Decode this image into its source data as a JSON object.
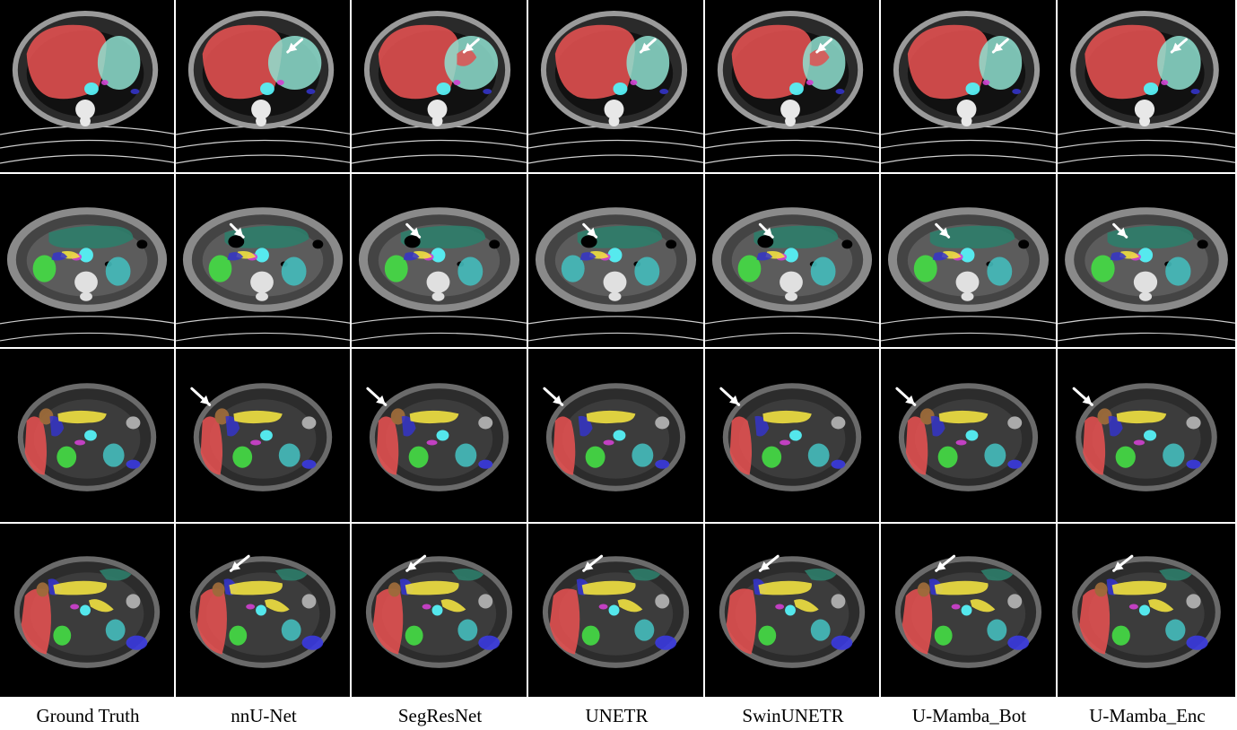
{
  "figure": {
    "columns": [
      "Ground Truth",
      "nnU-Net",
      "SegResNet",
      "UNETR",
      "SwinUNETR",
      "U-Mamba_Bot",
      "U-Mamba_Enc"
    ],
    "rows": [
      {
        "modality": "CT",
        "anatomy": "upper abdomen with liver and stomach",
        "arrow_columns": [
          1,
          2,
          3,
          4,
          5,
          6
        ]
      },
      {
        "modality": "CT",
        "anatomy": "mid abdomen with stomach, kidneys and pancreas",
        "arrow_columns": [
          1,
          2,
          3,
          4,
          5,
          6
        ]
      },
      {
        "modality": "MRI",
        "anatomy": "abdomen with liver, kidneys, gallbladder and pancreas",
        "arrow_columns": [
          1,
          2,
          3,
          4,
          5,
          6
        ]
      },
      {
        "modality": "MRI",
        "anatomy": "abdomen with liver, stomach, pancreas, kidneys and spleen",
        "arrow_columns": [
          1,
          2,
          3,
          4,
          5,
          6
        ]
      }
    ],
    "label_colors": {
      "liver": "#e05050",
      "stomach": "#2e7d6a",
      "spleen_ct": "#8fe0d0",
      "aorta": "#55f0f5",
      "kidney_right": "#44dd44",
      "kidney_left": "#44bbbb",
      "pancreas": "#f0e040",
      "gallbladder": "#9c6a3a",
      "duodenum": "#3434c8",
      "ivc": "#d040d0",
      "spleen_mri": "#3a3ae0",
      "arrow": "#ffffff",
      "background": "#000000",
      "tissue": "#7a7a7a"
    }
  }
}
